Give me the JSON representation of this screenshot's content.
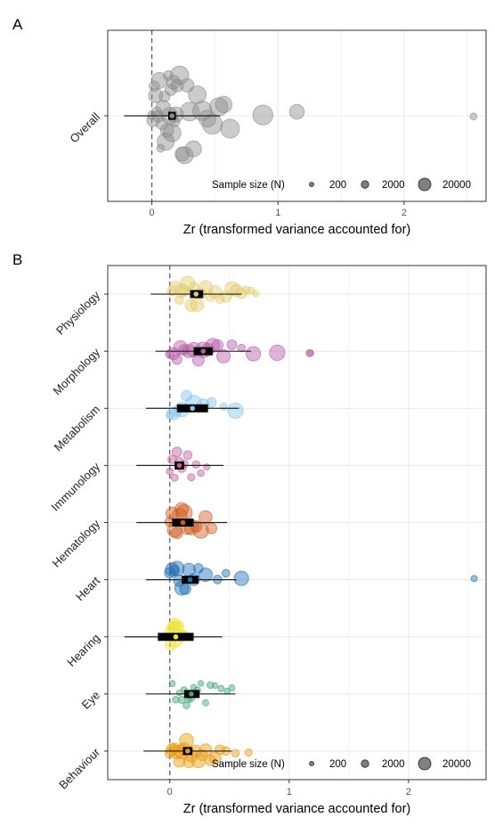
{
  "chart_data": [
    {
      "panel_label": "A",
      "type": "scatter",
      "subtype": "orchard plot (bubble beeswarm with pooled estimate, confidence and prediction intervals)",
      "categories": [
        "Overall"
      ],
      "color": "#8c8c8c",
      "xlabel": "Zr (transformed variance accounted for)",
      "xlim": [
        -0.35,
        2.65
      ],
      "x_ticks": [
        0,
        1,
        2
      ],
      "ref_line_x": 0,
      "grid": true,
      "legend": {
        "title": "Sample size (N)",
        "entries": [
          "200",
          "2000",
          "20000"
        ],
        "placement": "bottom-right"
      },
      "series": [
        {
          "name": "Overall",
          "estimate": 0.16,
          "ci": [
            0.13,
            0.19
          ],
          "pi": [
            -0.22,
            0.54
          ],
          "points": [
            {
              "x": 0.0,
              "size": 1.5
            },
            {
              "x": 0.01,
              "size": 2.2
            },
            {
              "x": 0.02,
              "size": 1.8
            },
            {
              "x": 0.03,
              "size": 2.5
            },
            {
              "x": 0.04,
              "size": 1.6
            },
            {
              "x": 0.05,
              "size": 2.0
            },
            {
              "x": 0.06,
              "size": 2.8
            },
            {
              "x": 0.07,
              "size": 1.4
            },
            {
              "x": 0.08,
              "size": 2.1
            },
            {
              "x": 0.09,
              "size": 2.6
            },
            {
              "x": 0.1,
              "size": 1.9
            },
            {
              "x": 0.11,
              "size": 3.0
            },
            {
              "x": 0.12,
              "size": 2.3
            },
            {
              "x": 0.13,
              "size": 1.7
            },
            {
              "x": 0.14,
              "size": 2.9
            },
            {
              "x": 0.15,
              "size": 2.0
            },
            {
              "x": 0.16,
              "size": 3.1
            },
            {
              "x": 0.17,
              "size": 2.4
            },
            {
              "x": 0.18,
              "size": 1.8
            },
            {
              "x": 0.19,
              "size": 2.7
            },
            {
              "x": 0.2,
              "size": 2.2
            },
            {
              "x": 0.22,
              "size": 3.2
            },
            {
              "x": 0.24,
              "size": 2.5
            },
            {
              "x": 0.26,
              "size": 3.0
            },
            {
              "x": 0.28,
              "size": 2.4
            },
            {
              "x": 0.3,
              "size": 3.3
            },
            {
              "x": 0.33,
              "size": 2.8
            },
            {
              "x": 0.36,
              "size": 3.1
            },
            {
              "x": 0.4,
              "size": 3.4
            },
            {
              "x": 0.44,
              "size": 3.0
            },
            {
              "x": 0.48,
              "size": 3.5
            },
            {
              "x": 0.53,
              "size": 3.2
            },
            {
              "x": 0.57,
              "size": 2.9
            },
            {
              "x": 0.62,
              "size": 3.3
            },
            {
              "x": 0.88,
              "size": 3.5
            },
            {
              "x": 1.15,
              "size": 2.6
            },
            {
              "x": 2.55,
              "size": 1.2
            }
          ]
        }
      ]
    },
    {
      "panel_label": "B",
      "type": "scatter",
      "subtype": "orchard plot (bubble beeswarm with pooled estimate, confidence and prediction intervals)",
      "categories": [
        "Physiology",
        "Morphology",
        "Metabolism",
        "Immunology",
        "Hematology",
        "Heart",
        "Hearing",
        "Eye",
        "Behaviour"
      ],
      "xlabel": "Zr (transformed variance accounted for)",
      "xlim": [
        -0.52,
        2.65
      ],
      "x_ticks": [
        0,
        1,
        2
      ],
      "ref_line_x": 0,
      "grid": true,
      "legend": {
        "title": "Sample size (N)",
        "entries": [
          "200",
          "2000",
          "20000"
        ],
        "placement": "bottom-right"
      },
      "series": [
        {
          "name": "Physiology",
          "color": "#e2cb6a",
          "estimate": 0.22,
          "ci": [
            0.17,
            0.28
          ],
          "pi": [
            -0.16,
            0.6
          ],
          "points": [
            {
              "x": 0.02,
              "size": 2.0
            },
            {
              "x": 0.05,
              "size": 2.4
            },
            {
              "x": 0.08,
              "size": 1.8
            },
            {
              "x": 0.1,
              "size": 2.8
            },
            {
              "x": 0.12,
              "size": 2.2
            },
            {
              "x": 0.15,
              "size": 3.0
            },
            {
              "x": 0.18,
              "size": 2.5
            },
            {
              "x": 0.2,
              "size": 1.9
            },
            {
              "x": 0.23,
              "size": 2.7
            },
            {
              "x": 0.26,
              "size": 2.2
            },
            {
              "x": 0.3,
              "size": 2.9
            },
            {
              "x": 0.34,
              "size": 2.0
            },
            {
              "x": 0.38,
              "size": 2.6
            },
            {
              "x": 0.42,
              "size": 1.8
            },
            {
              "x": 0.47,
              "size": 2.3
            },
            {
              "x": 0.52,
              "size": 2.9
            },
            {
              "x": 0.56,
              "size": 2.5
            },
            {
              "x": 0.6,
              "size": 2.1
            },
            {
              "x": 0.64,
              "size": 1.7
            },
            {
              "x": 0.68,
              "size": 1.5
            },
            {
              "x": 0.72,
              "size": 1.3
            }
          ]
        },
        {
          "name": "Morphology",
          "color": "#b55aa8",
          "estimate": 0.28,
          "ci": [
            0.2,
            0.36
          ],
          "pi": [
            -0.12,
            0.68
          ],
          "points": [
            {
              "x": 0.0,
              "size": 1.8
            },
            {
              "x": 0.03,
              "size": 2.5
            },
            {
              "x": 0.06,
              "size": 2.0
            },
            {
              "x": 0.09,
              "size": 2.9
            },
            {
              "x": 0.12,
              "size": 2.2
            },
            {
              "x": 0.16,
              "size": 2.7
            },
            {
              "x": 0.2,
              "size": 3.0
            },
            {
              "x": 0.24,
              "size": 2.4
            },
            {
              "x": 0.28,
              "size": 3.2
            },
            {
              "x": 0.32,
              "size": 2.6
            },
            {
              "x": 0.36,
              "size": 2.9
            },
            {
              "x": 0.4,
              "size": 2.3
            },
            {
              "x": 0.45,
              "size": 2.8
            },
            {
              "x": 0.52,
              "size": 2.0
            },
            {
              "x": 0.6,
              "size": 1.6
            },
            {
              "x": 0.7,
              "size": 3.0
            },
            {
              "x": 0.9,
              "size": 3.2
            },
            {
              "x": 1.17,
              "size": 1.5
            },
            {
              "x": 1.18,
              "size": 1.3
            }
          ]
        },
        {
          "name": "Metabolism",
          "color": "#86c3ee",
          "estimate": 0.19,
          "ci": [
            0.06,
            0.32
          ],
          "pi": [
            -0.2,
            0.58
          ],
          "points": [
            {
              "x": 0.0,
              "size": 1.6
            },
            {
              "x": 0.03,
              "size": 2.6
            },
            {
              "x": 0.06,
              "size": 2.0
            },
            {
              "x": 0.1,
              "size": 3.0
            },
            {
              "x": 0.14,
              "size": 2.2
            },
            {
              "x": 0.2,
              "size": 3.3
            },
            {
              "x": 0.28,
              "size": 2.5
            },
            {
              "x": 0.35,
              "size": 2.0
            },
            {
              "x": 0.45,
              "size": 1.5
            },
            {
              "x": 0.55,
              "size": 3.2
            }
          ]
        },
        {
          "name": "Immunology",
          "color": "#c05b9e",
          "estimate": 0.08,
          "ci": [
            0.04,
            0.12
          ],
          "pi": [
            -0.28,
            0.45
          ],
          "points": [
            {
              "x": 0.0,
              "size": 1.4
            },
            {
              "x": 0.02,
              "size": 1.8
            },
            {
              "x": 0.04,
              "size": 1.5
            },
            {
              "x": 0.06,
              "size": 2.0
            },
            {
              "x": 0.08,
              "size": 1.7
            },
            {
              "x": 0.1,
              "size": 1.9
            },
            {
              "x": 0.12,
              "size": 1.6
            },
            {
              "x": 0.15,
              "size": 1.8
            },
            {
              "x": 0.18,
              "size": 1.5
            },
            {
              "x": 0.22,
              "size": 1.6
            },
            {
              "x": 0.26,
              "size": 1.4
            },
            {
              "x": 0.31,
              "size": 1.3
            }
          ]
        },
        {
          "name": "Hematology",
          "color": "#d05c22",
          "estimate": 0.11,
          "ci": [
            0.02,
            0.2
          ],
          "pi": [
            -0.28,
            0.48
          ],
          "points": [
            {
              "x": 0.0,
              "size": 2.0
            },
            {
              "x": 0.02,
              "size": 2.6
            },
            {
              "x": 0.04,
              "size": 3.0
            },
            {
              "x": 0.06,
              "size": 2.4
            },
            {
              "x": 0.08,
              "size": 3.2
            },
            {
              "x": 0.1,
              "size": 2.8
            },
            {
              "x": 0.12,
              "size": 3.4
            },
            {
              "x": 0.15,
              "size": 2.6
            },
            {
              "x": 0.18,
              "size": 3.0
            },
            {
              "x": 0.22,
              "size": 2.4
            },
            {
              "x": 0.26,
              "size": 3.2
            },
            {
              "x": 0.3,
              "size": 2.7
            },
            {
              "x": 0.35,
              "size": 2.2
            }
          ]
        },
        {
          "name": "Heart",
          "color": "#1f6fb3",
          "estimate": 0.17,
          "ci": [
            0.1,
            0.24
          ],
          "pi": [
            -0.2,
            0.56
          ],
          "points": [
            {
              "x": 0.0,
              "size": 2.2
            },
            {
              "x": 0.02,
              "size": 2.8
            },
            {
              "x": 0.04,
              "size": 2.0
            },
            {
              "x": 0.06,
              "size": 3.0
            },
            {
              "x": 0.08,
              "size": 2.4
            },
            {
              "x": 0.1,
              "size": 2.9
            },
            {
              "x": 0.13,
              "size": 2.3
            },
            {
              "x": 0.16,
              "size": 2.7
            },
            {
              "x": 0.2,
              "size": 2.5
            },
            {
              "x": 0.24,
              "size": 2.0
            },
            {
              "x": 0.3,
              "size": 2.8
            },
            {
              "x": 0.4,
              "size": 1.8
            },
            {
              "x": 0.47,
              "size": 1.6
            },
            {
              "x": 0.6,
              "size": 3.0
            },
            {
              "x": 2.55,
              "size": 1.3
            }
          ]
        },
        {
          "name": "Hearing",
          "color": "#f0e33c",
          "estimate": 0.05,
          "ci": [
            -0.1,
            0.2
          ],
          "pi": [
            -0.38,
            0.44
          ],
          "points": [
            {
              "x": 0.0,
              "size": 2.0
            },
            {
              "x": 0.01,
              "size": 2.4
            },
            {
              "x": 0.02,
              "size": 1.8
            },
            {
              "x": 0.03,
              "size": 2.6
            },
            {
              "x": 0.04,
              "size": 2.0
            },
            {
              "x": 0.05,
              "size": 2.8
            },
            {
              "x": 0.06,
              "size": 2.2
            },
            {
              "x": 0.07,
              "size": 2.5
            },
            {
              "x": 0.08,
              "size": 1.9
            },
            {
              "x": 0.1,
              "size": 2.3
            },
            {
              "x": 0.12,
              "size": 1.8
            }
          ]
        },
        {
          "name": "Eye",
          "color": "#3fa57c",
          "estimate": 0.18,
          "ci": [
            0.12,
            0.25
          ],
          "pi": [
            -0.2,
            0.55
          ],
          "points": [
            {
              "x": 0.02,
              "size": 1.3
            },
            {
              "x": 0.05,
              "size": 1.4
            },
            {
              "x": 0.08,
              "size": 1.2
            },
            {
              "x": 0.1,
              "size": 1.5
            },
            {
              "x": 0.12,
              "size": 1.3
            },
            {
              "x": 0.14,
              "size": 1.4
            },
            {
              "x": 0.16,
              "size": 1.2
            },
            {
              "x": 0.18,
              "size": 1.5
            },
            {
              "x": 0.2,
              "size": 1.3
            },
            {
              "x": 0.23,
              "size": 1.4
            },
            {
              "x": 0.26,
              "size": 1.2
            },
            {
              "x": 0.3,
              "size": 1.3
            },
            {
              "x": 0.34,
              "size": 1.4
            },
            {
              "x": 0.38,
              "size": 1.2
            },
            {
              "x": 0.43,
              "size": 1.3
            },
            {
              "x": 0.48,
              "size": 1.2
            },
            {
              "x": 0.52,
              "size": 1.3
            }
          ]
        },
        {
          "name": "Behaviour",
          "color": "#e8980e",
          "estimate": 0.15,
          "ci": [
            0.11,
            0.19
          ],
          "pi": [
            -0.22,
            0.52
          ],
          "points": [
            {
              "x": 0.0,
              "size": 2.0
            },
            {
              "x": 0.02,
              "size": 2.5
            },
            {
              "x": 0.04,
              "size": 2.2
            },
            {
              "x": 0.06,
              "size": 2.8
            },
            {
              "x": 0.08,
              "size": 2.4
            },
            {
              "x": 0.1,
              "size": 3.0
            },
            {
              "x": 0.12,
              "size": 2.6
            },
            {
              "x": 0.14,
              "size": 2.9
            },
            {
              "x": 0.16,
              "size": 2.3
            },
            {
              "x": 0.18,
              "size": 2.7
            },
            {
              "x": 0.21,
              "size": 2.5
            },
            {
              "x": 0.24,
              "size": 2.8
            },
            {
              "x": 0.27,
              "size": 2.3
            },
            {
              "x": 0.3,
              "size": 2.6
            },
            {
              "x": 0.34,
              "size": 2.2
            },
            {
              "x": 0.38,
              "size": 2.5
            },
            {
              "x": 0.42,
              "size": 2.0
            },
            {
              "x": 0.47,
              "size": 1.8
            },
            {
              "x": 0.55,
              "size": 1.6
            },
            {
              "x": 0.66,
              "size": 1.5
            }
          ]
        }
      ]
    }
  ]
}
